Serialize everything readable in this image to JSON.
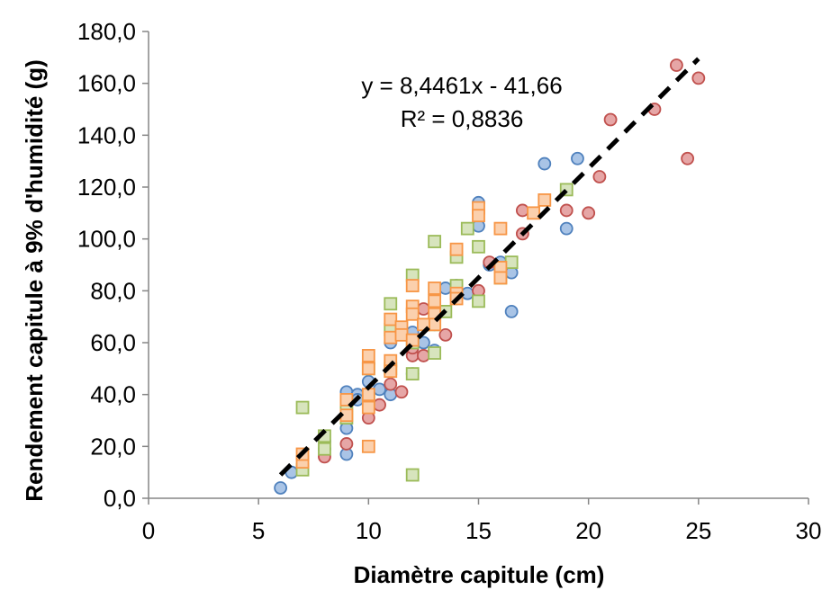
{
  "chart_data": {
    "type": "scatter",
    "title": "",
    "xlabel": "Diamètre capitule (cm)",
    "ylabel": "Rendement capitule à 9% d'humidité (g)",
    "xlim": [
      0,
      30
    ],
    "ylim": [
      0,
      180
    ],
    "xticks": [
      "0",
      "5",
      "10",
      "15",
      "20",
      "25",
      "30"
    ],
    "yticks": [
      "0,0",
      "20,0",
      "40,0",
      "60,0",
      "80,0",
      "100,0",
      "120,0",
      "140,0",
      "160,0",
      "180,0"
    ],
    "grid": false,
    "legend": false,
    "series": [
      {
        "marker": "circle",
        "fill": "#a9c4e6",
        "stroke": "#4f81bd",
        "points": [
          [
            6,
            4
          ],
          [
            6.5,
            10
          ],
          [
            7,
            12
          ],
          [
            8,
            22
          ],
          [
            8,
            19
          ],
          [
            9,
            17
          ],
          [
            9,
            27
          ],
          [
            9,
            41
          ],
          [
            9.5,
            40
          ],
          [
            9.5,
            38
          ],
          [
            10,
            35
          ],
          [
            10,
            45
          ],
          [
            10.5,
            42
          ],
          [
            11,
            40
          ],
          [
            11,
            60
          ],
          [
            12,
            48
          ],
          [
            12,
            64
          ],
          [
            12,
            58
          ],
          [
            12.5,
            60
          ],
          [
            13,
            57
          ],
          [
            13,
            67
          ],
          [
            13.5,
            81
          ],
          [
            14,
            82
          ],
          [
            14,
            77
          ],
          [
            14.5,
            79
          ],
          [
            15,
            114
          ],
          [
            15,
            105
          ],
          [
            16,
            91
          ],
          [
            16.5,
            87
          ],
          [
            16.5,
            72
          ],
          [
            18,
            129
          ],
          [
            19.5,
            131
          ],
          [
            19,
            104
          ],
          [
            15.5,
            90
          ]
        ]
      },
      {
        "marker": "circle",
        "fill": "#e6a6a6",
        "stroke": "#c0504d",
        "points": [
          [
            7,
            12
          ],
          [
            8,
            16
          ],
          [
            9,
            21
          ],
          [
            10,
            31
          ],
          [
            10,
            52
          ],
          [
            10.5,
            36
          ],
          [
            11,
            44
          ],
          [
            11.5,
            41
          ],
          [
            12,
            55
          ],
          [
            12.5,
            55
          ],
          [
            12.5,
            73
          ],
          [
            13,
            68
          ],
          [
            13.5,
            63
          ],
          [
            14,
            80
          ],
          [
            15,
            80
          ],
          [
            15.5,
            91
          ],
          [
            16,
            88
          ],
          [
            17,
            102
          ],
          [
            17,
            111
          ],
          [
            19,
            111
          ],
          [
            20,
            110
          ],
          [
            20.5,
            124
          ],
          [
            21,
            146
          ],
          [
            23,
            150
          ],
          [
            24,
            167
          ],
          [
            25,
            162
          ],
          [
            24.5,
            131
          ],
          [
            12,
            58
          ]
        ]
      },
      {
        "marker": "square",
        "fill": "#d7e4bd",
        "stroke": "#9bbb59",
        "points": [
          [
            7,
            11
          ],
          [
            7,
            35
          ],
          [
            8,
            24
          ],
          [
            8,
            19
          ],
          [
            9,
            31
          ],
          [
            9,
            36
          ],
          [
            10,
            50
          ],
          [
            10,
            38
          ],
          [
            11,
            75
          ],
          [
            11,
            65
          ],
          [
            11,
            50
          ],
          [
            12,
            86
          ],
          [
            12,
            60
          ],
          [
            12,
            48
          ],
          [
            12,
            9
          ],
          [
            13,
            99
          ],
          [
            13,
            56
          ],
          [
            13,
            67
          ],
          [
            14,
            93
          ],
          [
            14,
            82
          ],
          [
            14.5,
            104
          ],
          [
            15,
            97
          ],
          [
            15,
            76
          ],
          [
            16,
            85
          ],
          [
            16.5,
            91
          ],
          [
            19,
            119
          ],
          [
            13.5,
            72
          ]
        ]
      },
      {
        "marker": "square",
        "fill": "#fbd0ad",
        "stroke": "#f79646",
        "points": [
          [
            7,
            14
          ],
          [
            7,
            17
          ],
          [
            9,
            38
          ],
          [
            9,
            32
          ],
          [
            10,
            20
          ],
          [
            10,
            55
          ],
          [
            10,
            50
          ],
          [
            10,
            40
          ],
          [
            10,
            35
          ],
          [
            11,
            69
          ],
          [
            11,
            62
          ],
          [
            11,
            53
          ],
          [
            11,
            49
          ],
          [
            11.5,
            66
          ],
          [
            11.5,
            63
          ],
          [
            12,
            82
          ],
          [
            12,
            74
          ],
          [
            12,
            71
          ],
          [
            12,
            61
          ],
          [
            13,
            81
          ],
          [
            13,
            76
          ],
          [
            13,
            71
          ],
          [
            13,
            67
          ],
          [
            14,
            96
          ],
          [
            14,
            79
          ],
          [
            14,
            77
          ],
          [
            15,
            112
          ],
          [
            15,
            109
          ],
          [
            16,
            104
          ],
          [
            16,
            89
          ],
          [
            16,
            85
          ],
          [
            17.5,
            110
          ],
          [
            18,
            115
          ],
          [
            12.5,
            67
          ]
        ]
      }
    ],
    "trendline": {
      "type": "linear",
      "style": "dashed",
      "color": "#000000",
      "slope": 8.4461,
      "intercept": -41.66,
      "x_range": [
        6,
        25
      ],
      "equation": "y = 8,4461x - 41,66",
      "r2": "R² = 0,8836"
    }
  }
}
